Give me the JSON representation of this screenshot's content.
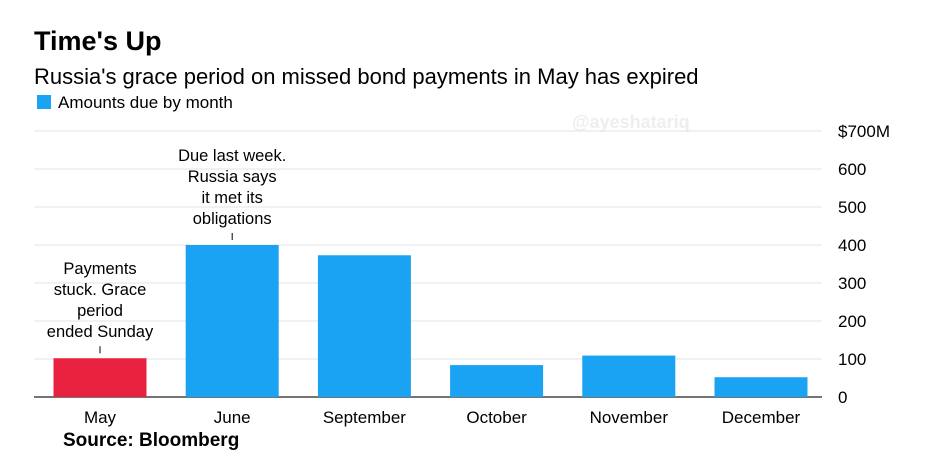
{
  "chart_data": {
    "type": "bar",
    "title": "Time's Up",
    "subtitle": "Russia's grace period on missed bond payments in May has expired",
    "legend": {
      "label": "Amounts due by month",
      "color": "#1aa3f2",
      "placement": "top-left"
    },
    "categories": [
      "May",
      "June",
      "September",
      "October",
      "November",
      "December"
    ],
    "series": [
      {
        "name": "Amounts due by month",
        "values": [
          102,
          400,
          373,
          84,
          109,
          52
        ]
      }
    ],
    "bar_colors": [
      "#e8213f",
      "#1aa3f2",
      "#1aa3f2",
      "#1aa3f2",
      "#1aa3f2",
      "#1aa3f2"
    ],
    "ylim": [
      0,
      700
    ],
    "yticks": [
      0,
      100,
      200,
      300,
      400,
      500,
      600,
      700
    ],
    "ytick_labels": [
      "0",
      "100",
      "200",
      "300",
      "400",
      "500",
      "600",
      "$700M"
    ],
    "y_axis_position": "right",
    "grid": true,
    "xlabel": "",
    "ylabel": "",
    "annotations": [
      {
        "category": "May",
        "lines": [
          "Payments",
          "stuck. Grace",
          "period",
          "ended Sunday"
        ]
      },
      {
        "category": "June",
        "lines": [
          "Due last week.",
          "Russia says",
          "it met its",
          "obligations"
        ]
      }
    ],
    "source": "Source: Bloomberg",
    "watermark": "@ayeshatariq"
  }
}
